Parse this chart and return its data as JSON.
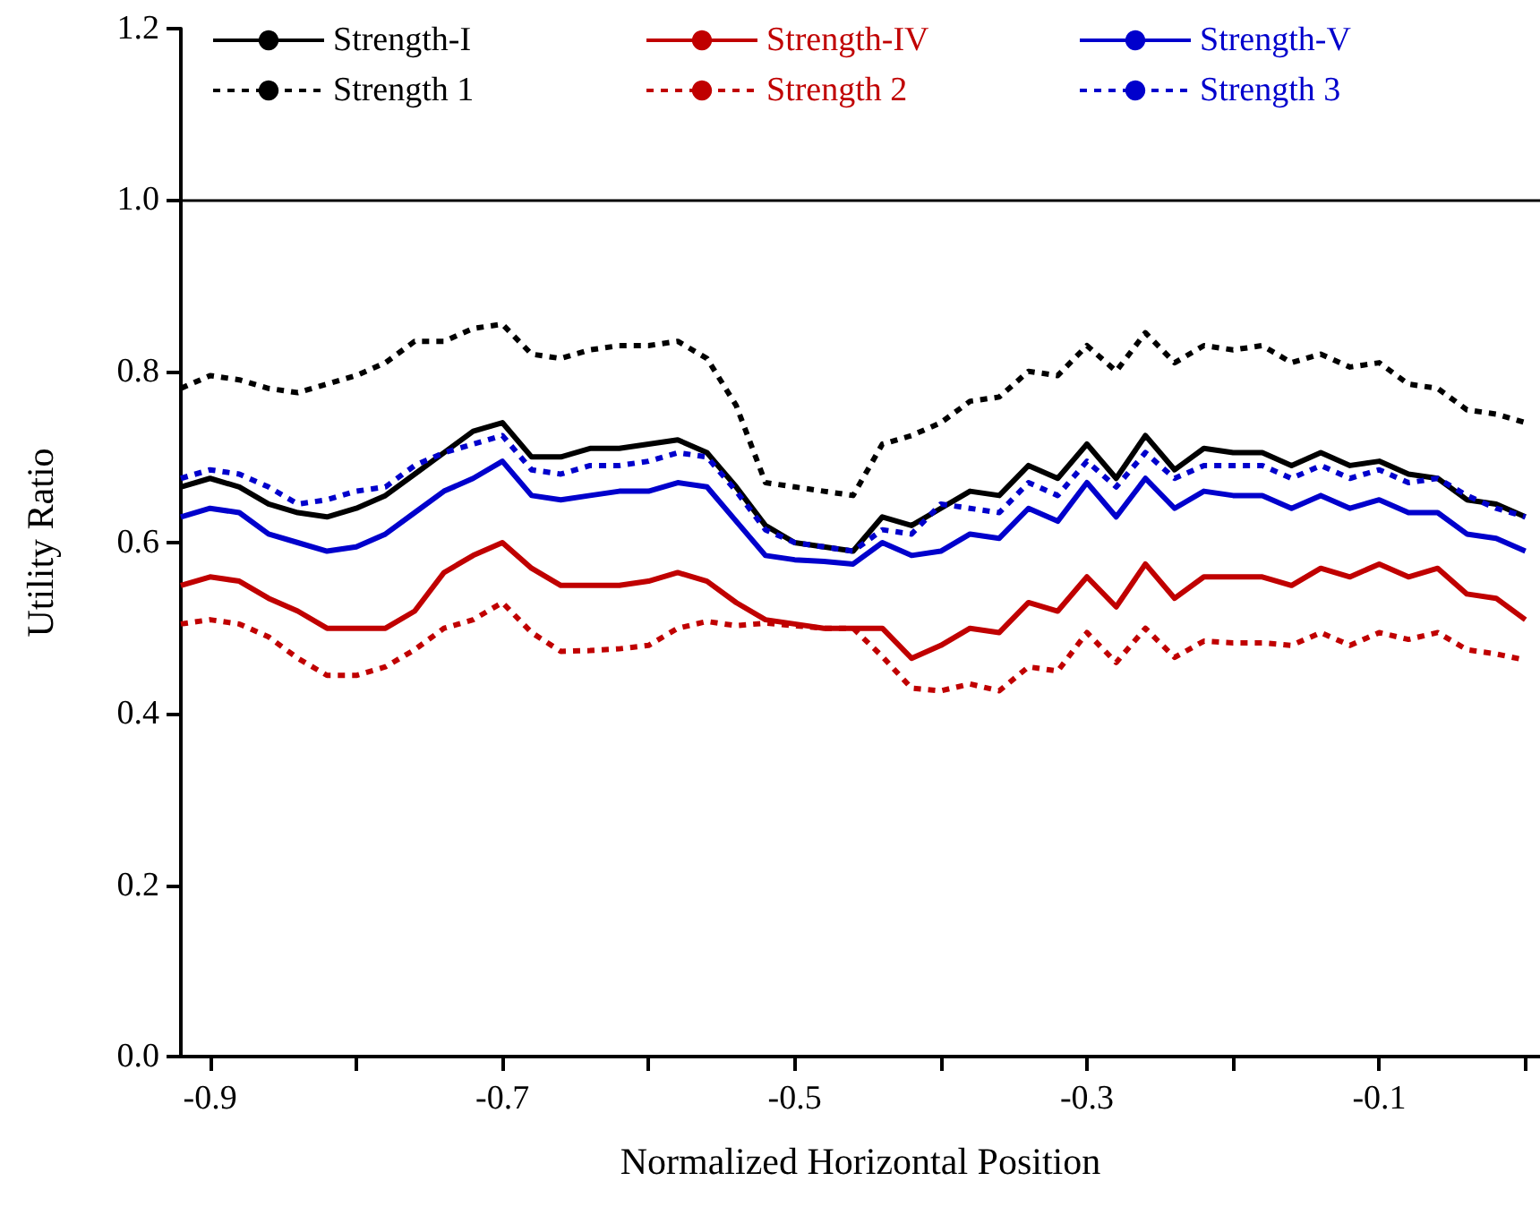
{
  "chart_data": {
    "type": "line",
    "xlabel": "Normalized Horizontal Position",
    "ylabel": "Utility Ratio",
    "x": [
      -0.92,
      -0.9,
      -0.88,
      -0.86,
      -0.84,
      -0.82,
      -0.8,
      -0.78,
      -0.76,
      -0.74,
      -0.72,
      -0.7,
      -0.68,
      -0.66,
      -0.64,
      -0.62,
      -0.6,
      -0.58,
      -0.56,
      -0.54,
      -0.52,
      -0.5,
      -0.48,
      -0.46,
      -0.44,
      -0.42,
      -0.4,
      -0.38,
      -0.36,
      -0.34,
      -0.32,
      -0.3,
      -0.28,
      -0.26,
      -0.24,
      -0.22,
      -0.2,
      -0.18,
      -0.16,
      -0.14,
      -0.12,
      -0.1,
      -0.08,
      -0.06,
      -0.04,
      -0.02,
      0.0
    ],
    "xlim": [
      -0.92,
      0.01
    ],
    "xticks": [
      -0.9,
      {
        "value": -0.8,
        "label": null
      },
      -0.7,
      {
        "value": -0.6,
        "label": null
      },
      -0.5,
      {
        "value": -0.4,
        "label": null
      },
      -0.3,
      {
        "value": -0.2,
        "label": null
      },
      -0.1,
      {
        "value": 0,
        "label": null
      }
    ],
    "ylim": [
      0,
      1.2
    ],
    "yticks": [
      {
        "value": 0,
        "label": "0.0"
      },
      0.2,
      0.4,
      0.6,
      0.8,
      {
        "value": 1,
        "label": "1.0"
      },
      1.2
    ],
    "grid": false,
    "legend": "top",
    "marker": "none",
    "ref_lines": [
      {
        "axis": "y",
        "value": 1,
        "label": null,
        "color": "#000000",
        "line_style": "solid"
      }
    ],
    "series": [
      {
        "name": "Strength-I",
        "color": "#000000",
        "line_style": "solid",
        "values": [
          0.665,
          0.675,
          0.665,
          0.645,
          0.635,
          0.63,
          0.64,
          0.655,
          0.68,
          0.705,
          0.73,
          0.74,
          0.7,
          0.7,
          0.71,
          0.71,
          0.715,
          0.72,
          0.705,
          0.665,
          0.62,
          0.6,
          0.595,
          0.59,
          0.63,
          0.62,
          0.64,
          0.66,
          0.655,
          0.69,
          0.675,
          0.715,
          0.675,
          0.725,
          0.685,
          0.71,
          0.705,
          0.705,
          0.69,
          0.705,
          0.69,
          0.695,
          0.68,
          0.675,
          0.65,
          0.645,
          0.63
        ]
      },
      {
        "name": "Strength-IV",
        "color": "#c00000",
        "line_style": "solid",
        "values": [
          0.55,
          0.56,
          0.555,
          0.535,
          0.52,
          0.5,
          0.5,
          0.5,
          0.52,
          0.565,
          0.585,
          0.6,
          0.57,
          0.55,
          0.55,
          0.55,
          0.555,
          0.565,
          0.555,
          0.53,
          0.51,
          0.505,
          0.5,
          0.5,
          0.5,
          0.465,
          0.48,
          0.5,
          0.495,
          0.53,
          0.52,
          0.56,
          0.525,
          0.575,
          0.535,
          0.56,
          0.56,
          0.56,
          0.55,
          0.57,
          0.56,
          0.575,
          0.56,
          0.57,
          0.54,
          0.535,
          0.51
        ]
      },
      {
        "name": "Strength-V",
        "color": "#0000cc",
        "line_style": "solid",
        "values": [
          0.63,
          0.64,
          0.635,
          0.61,
          0.6,
          0.59,
          0.595,
          0.61,
          0.635,
          0.66,
          0.675,
          0.695,
          0.655,
          0.65,
          0.655,
          0.66,
          0.66,
          0.67,
          0.665,
          0.625,
          0.585,
          0.58,
          0.578,
          0.575,
          0.6,
          0.585,
          0.59,
          0.61,
          0.605,
          0.64,
          0.625,
          0.67,
          0.63,
          0.675,
          0.64,
          0.66,
          0.655,
          0.655,
          0.64,
          0.655,
          0.64,
          0.65,
          0.635,
          0.635,
          0.61,
          0.605,
          0.59
        ]
      },
      {
        "name": "Strength 1",
        "color": "#000000",
        "line_style": "dotted",
        "values": [
          0.78,
          0.795,
          0.79,
          0.78,
          0.775,
          0.785,
          0.795,
          0.81,
          0.835,
          0.835,
          0.85,
          0.855,
          0.82,
          0.815,
          0.825,
          0.83,
          0.83,
          0.835,
          0.815,
          0.76,
          0.67,
          0.665,
          0.66,
          0.655,
          0.715,
          0.725,
          0.74,
          0.765,
          0.77,
          0.8,
          0.795,
          0.83,
          0.8,
          0.845,
          0.81,
          0.83,
          0.825,
          0.83,
          0.81,
          0.82,
          0.805,
          0.81,
          0.785,
          0.78,
          0.755,
          0.75,
          0.74
        ]
      },
      {
        "name": "Strength 2",
        "color": "#c00000",
        "line_style": "dotted",
        "values": [
          0.505,
          0.51,
          0.505,
          0.49,
          0.465,
          0.445,
          0.445,
          0.455,
          0.475,
          0.5,
          0.51,
          0.53,
          0.495,
          0.473,
          0.474,
          0.476,
          0.48,
          0.5,
          0.508,
          0.503,
          0.506,
          0.503,
          0.5,
          0.5,
          0.467,
          0.43,
          0.427,
          0.435,
          0.427,
          0.455,
          0.45,
          0.495,
          0.46,
          0.5,
          0.466,
          0.485,
          0.483,
          0.483,
          0.48,
          0.495,
          0.48,
          0.495,
          0.487,
          0.495,
          0.475,
          0.47,
          0.463
        ]
      },
      {
        "name": "Strength 3",
        "color": "#0000cc",
        "line_style": "dotted",
        "values": [
          0.675,
          0.685,
          0.68,
          0.665,
          0.645,
          0.65,
          0.66,
          0.665,
          0.69,
          0.705,
          0.715,
          0.725,
          0.685,
          0.68,
          0.69,
          0.69,
          0.695,
          0.705,
          0.7,
          0.66,
          0.615,
          0.6,
          0.595,
          0.59,
          0.615,
          0.61,
          0.645,
          0.64,
          0.635,
          0.67,
          0.655,
          0.695,
          0.665,
          0.705,
          0.675,
          0.69,
          0.69,
          0.69,
          0.675,
          0.69,
          0.675,
          0.685,
          0.67,
          0.675,
          0.655,
          0.64,
          0.63
        ]
      }
    ]
  }
}
